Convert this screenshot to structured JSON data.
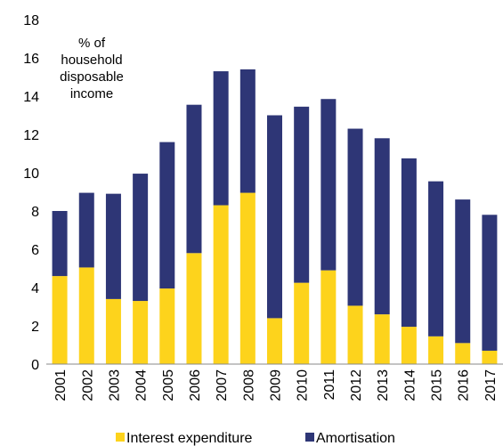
{
  "chart_data": {
    "type": "stacked_bar",
    "annotation": [
      "% of",
      "household",
      "disposable",
      "income"
    ],
    "categories": [
      "2001",
      "2002",
      "2003",
      "2004",
      "2005",
      "2006",
      "2007",
      "2008",
      "2009",
      "2010",
      "2011",
      "2012",
      "2013",
      "2014",
      "2015",
      "2016",
      "2017"
    ],
    "series": [
      {
        "name": "Interest expenditure",
        "color": "#fdd31c",
        "values": [
          4.6,
          5.05,
          3.4,
          3.3,
          3.95,
          5.8,
          8.3,
          8.95,
          2.4,
          4.25,
          4.9,
          3.05,
          2.6,
          1.95,
          1.45,
          1.1,
          0.7
        ]
      },
      {
        "name": "Amortisation",
        "color": "#2e3676",
        "values": [
          3.4,
          3.9,
          5.5,
          6.65,
          7.65,
          7.75,
          7.0,
          6.45,
          10.6,
          9.2,
          8.95,
          9.25,
          9.2,
          8.8,
          8.1,
          7.5,
          7.1
        ]
      }
    ],
    "ylim": [
      0,
      18
    ],
    "yticks": [
      0,
      2,
      4,
      6,
      8,
      10,
      12,
      14,
      16,
      18
    ],
    "grid": false,
    "legend": "bottom"
  }
}
